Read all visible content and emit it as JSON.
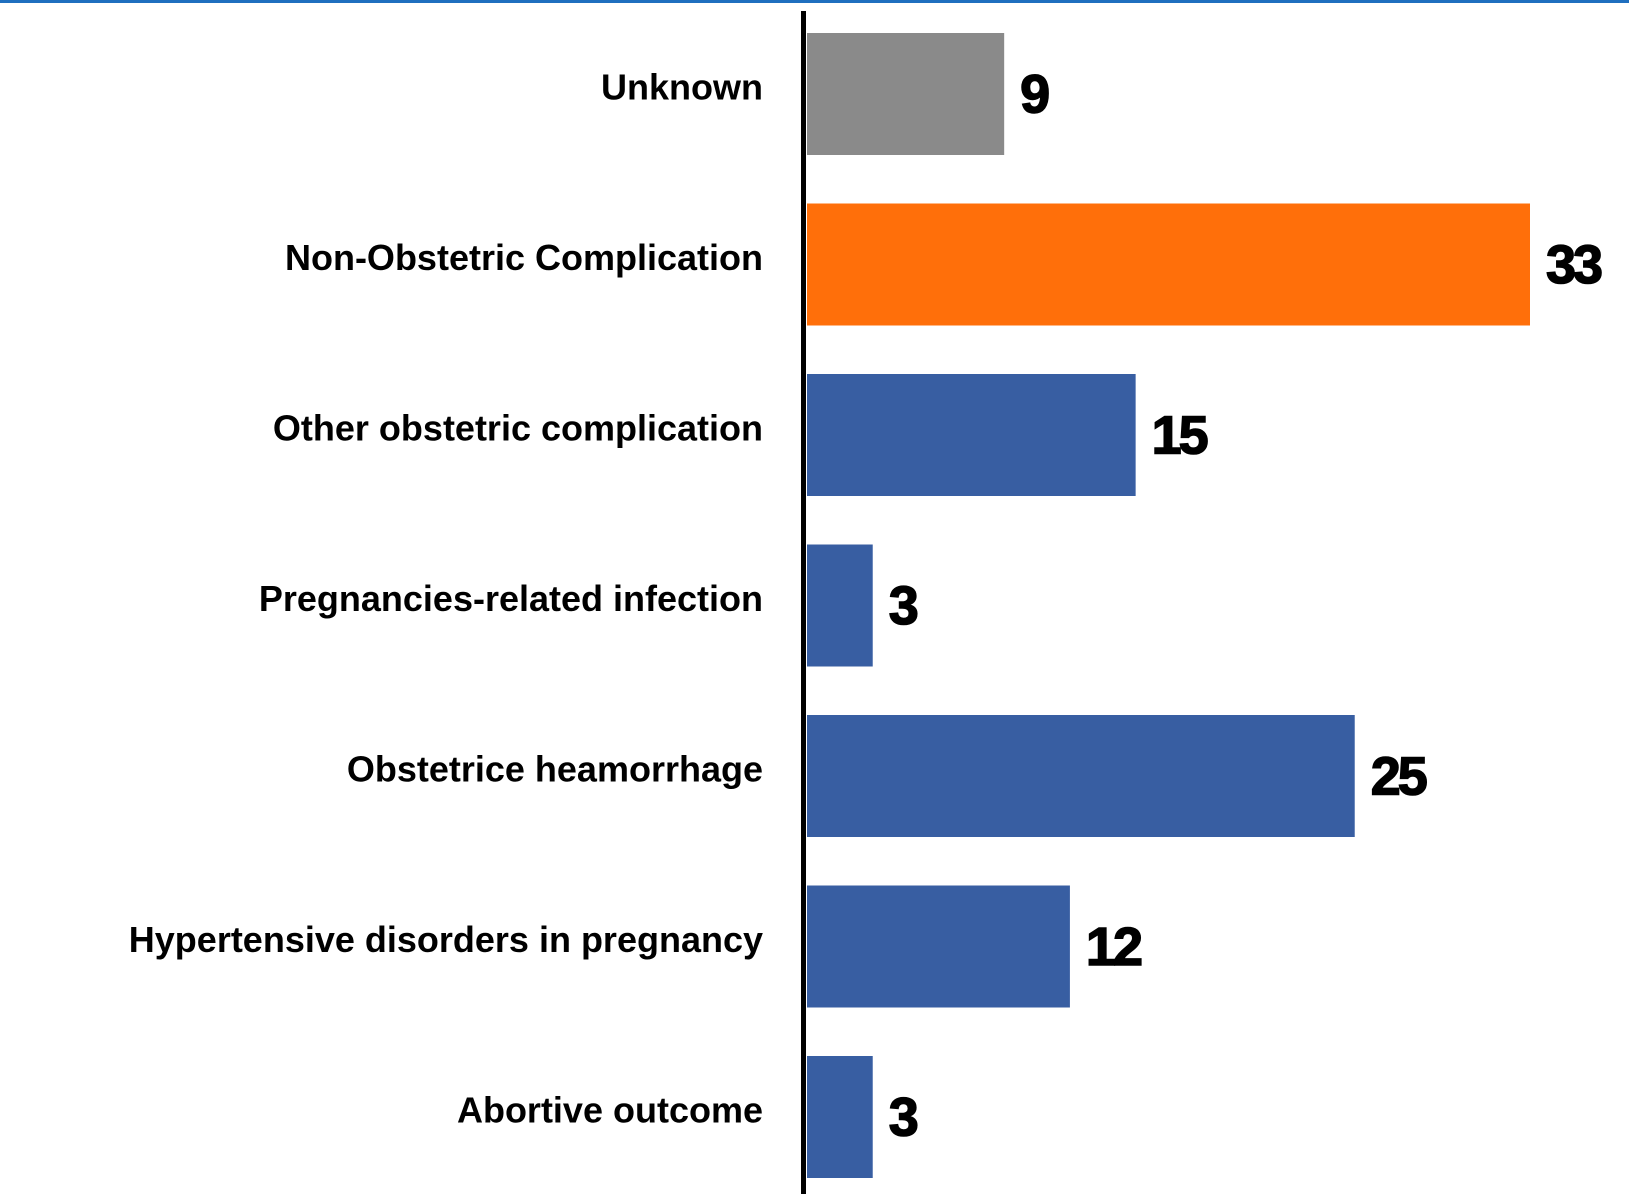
{
  "chart_data": {
    "type": "hbar",
    "categories": [
      "Unknown",
      "Non-Obstetric Complication",
      "Other obstetric complication",
      "Pregnancies-related infection",
      "Obstetrice heamorrhage",
      "Hypertensive disorders in pregnancy",
      "Abortive outcome"
    ],
    "values": [
      9,
      33,
      15,
      3,
      25,
      12,
      3
    ],
    "colors": [
      "#8a8a8a",
      "#ff6f0a",
      "#385ea2",
      "#385ea2",
      "#385ea2",
      "#385ea2",
      "#385ea2"
    ]
  }
}
